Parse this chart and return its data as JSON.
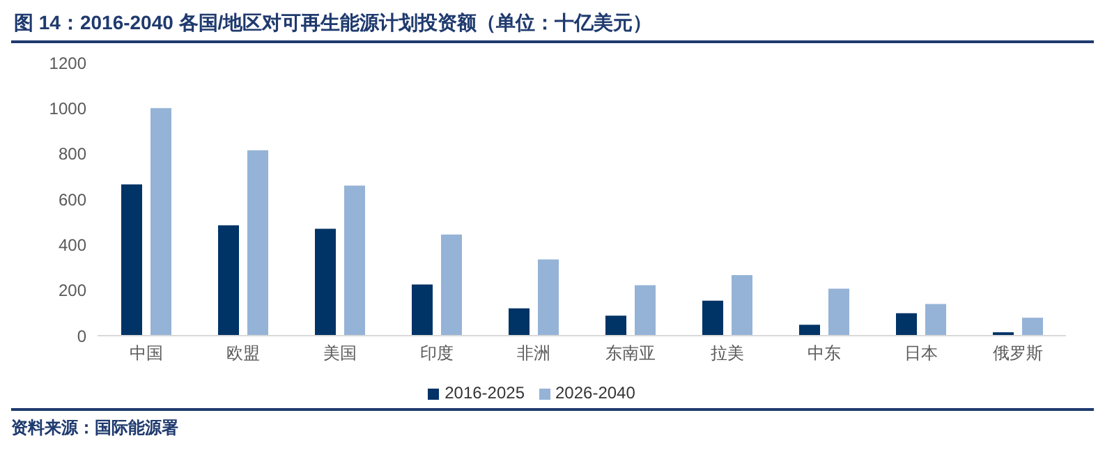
{
  "chart_data": {
    "type": "bar",
    "title": "图 14：2016-2040 各国/地区对可再生能源计划投资额（单位：十亿美元）",
    "categories": [
      "中国",
      "欧盟",
      "美国",
      "印度",
      "非洲",
      "东南亚",
      "拉美",
      "中东",
      "日本",
      "俄罗斯"
    ],
    "series": [
      {
        "name": "2016-2025",
        "color": "#003366",
        "values": [
          665,
          485,
          470,
          225,
          120,
          88,
          154,
          48,
          99,
          15
        ]
      },
      {
        "name": "2026-2040",
        "color": "#95b3d7",
        "values": [
          1000,
          815,
          660,
          445,
          335,
          222,
          266,
          207,
          139,
          79
        ]
      }
    ],
    "ylim": [
      0,
      1200
    ],
    "yticks": [
      0,
      200,
      400,
      600,
      800,
      1000,
      1200
    ],
    "grid": false,
    "legend": "bottom",
    "annotations": [
      "资料来源：国际能源署"
    ]
  }
}
